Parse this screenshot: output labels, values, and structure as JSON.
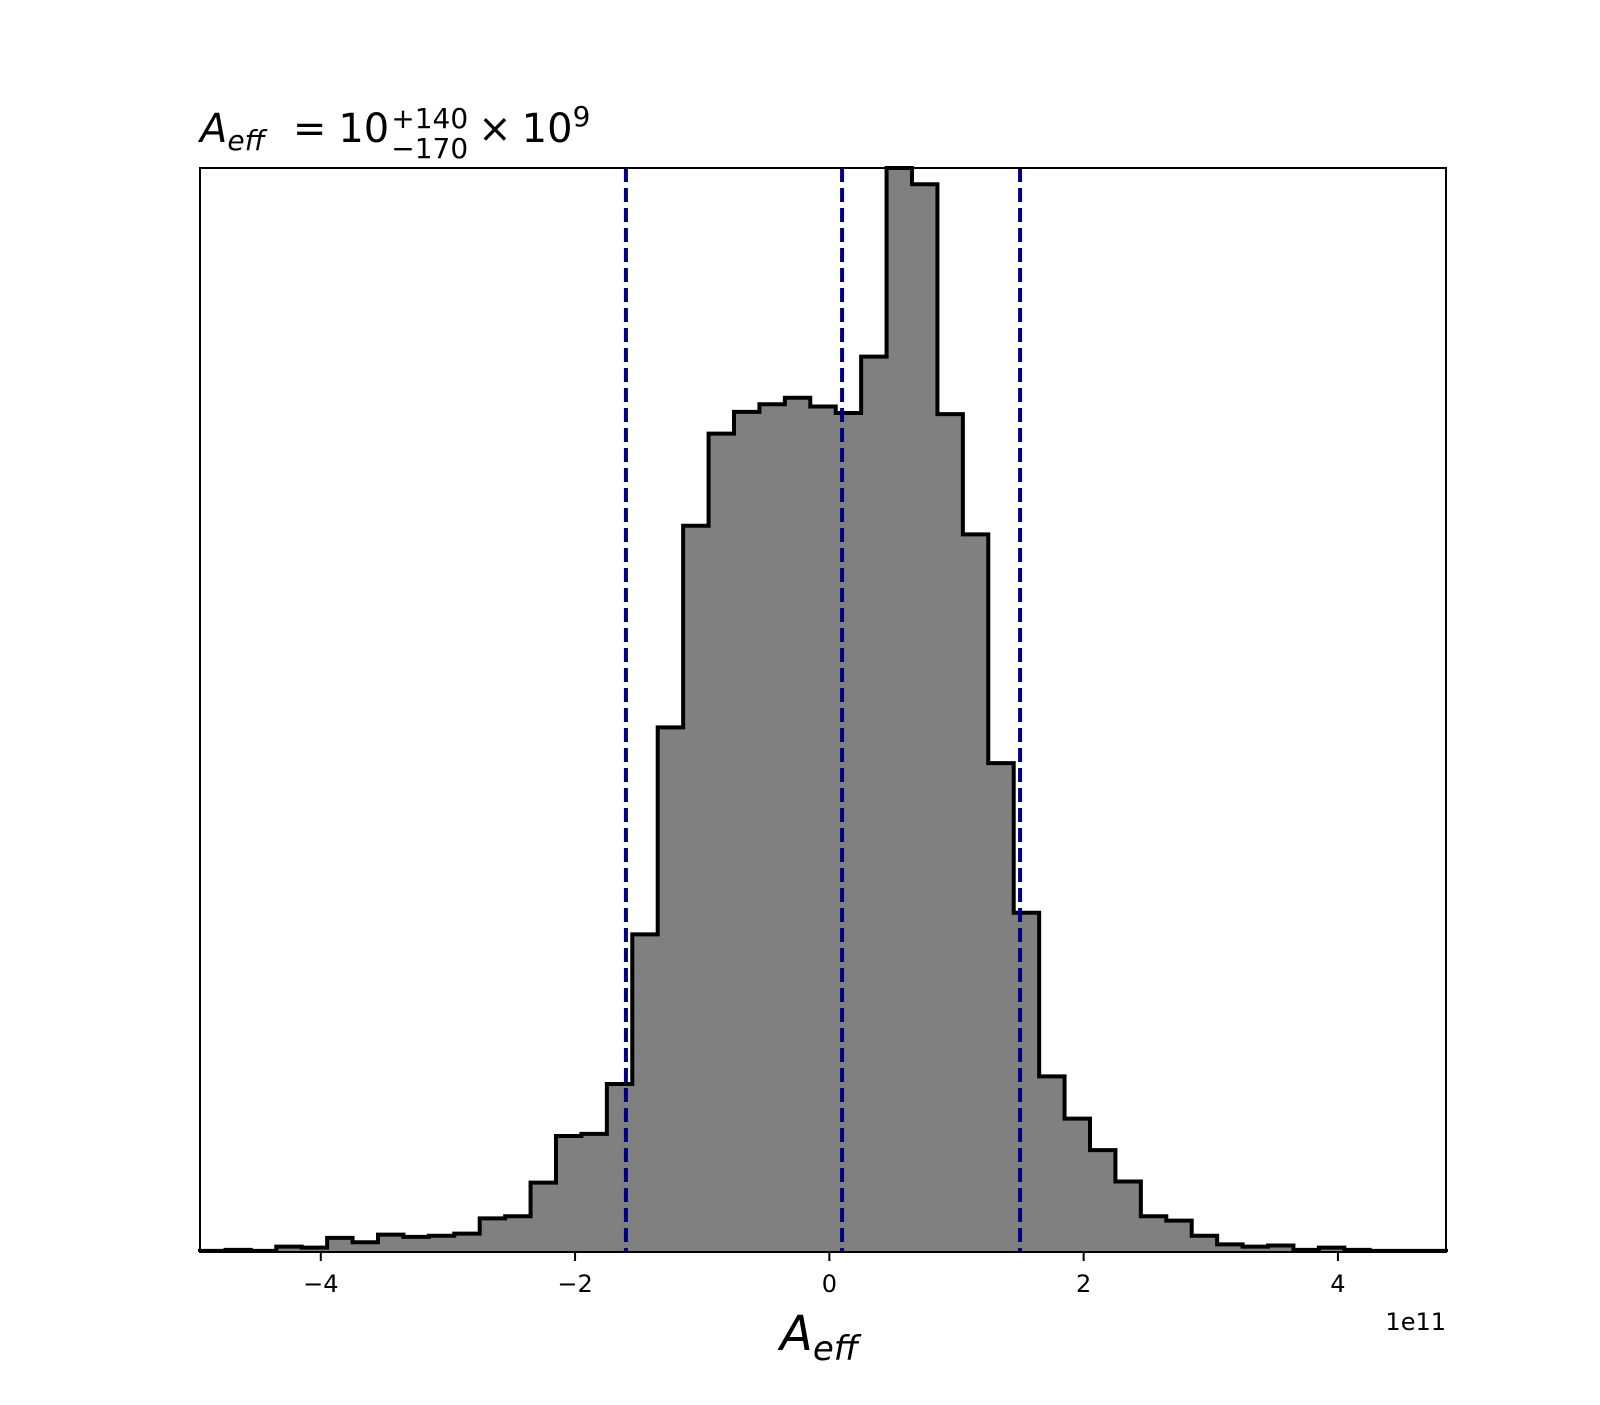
{
  "chart_data": {
    "type": "histogram",
    "title": {
      "symbol": "A",
      "symbol_sub": "eff",
      "equals": "=",
      "value": "10",
      "upper_err": "+140",
      "lower_err": "−170",
      "times": "×",
      "multiplier_base": "10",
      "multiplier_exp": "9"
    },
    "xlabel": {
      "symbol": "A",
      "symbol_sub": "eff"
    },
    "x_offset_text": "1e11",
    "xlim": [
      -4.95,
      4.85
    ],
    "ylim": [
      0,
      1
    ],
    "x_ticks": [
      {
        "value": -4,
        "label": "−4"
      },
      {
        "value": -2,
        "label": "−2"
      },
      {
        "value": 0,
        "label": "0"
      },
      {
        "value": 2,
        "label": "2"
      },
      {
        "value": 4,
        "label": "4"
      }
    ],
    "bin_start": -4.95,
    "bin_width": 0.2,
    "counts": [
      0.001,
      0.002,
      0.001,
      0.005,
      0.004,
      0.013,
      0.009,
      0.016,
      0.014,
      0.015,
      0.017,
      0.031,
      0.033,
      0.064,
      0.107,
      0.109,
      0.155,
      0.293,
      0.484,
      0.67,
      0.755,
      0.775,
      0.782,
      0.788,
      0.78,
      0.774,
      0.826,
      1.0,
      0.985,
      0.773,
      0.662,
      0.451,
      0.313,
      0.162,
      0.123,
      0.094,
      0.065,
      0.033,
      0.029,
      0.015,
      0.007,
      0.005,
      0.006,
      0.002,
      0.004,
      0.002,
      0.001,
      0.001,
      0.001
    ],
    "fill_color": "#808080",
    "edge_color": "#000000",
    "vlines": [
      {
        "name": "lower-quantile",
        "x": -1.6
      },
      {
        "name": "median",
        "x": 0.1
      },
      {
        "name": "upper-quantile",
        "x": 1.5
      }
    ],
    "vline_color": "#000080",
    "vline_style": "dashed",
    "y_ticks_visible": false,
    "grid": false
  }
}
